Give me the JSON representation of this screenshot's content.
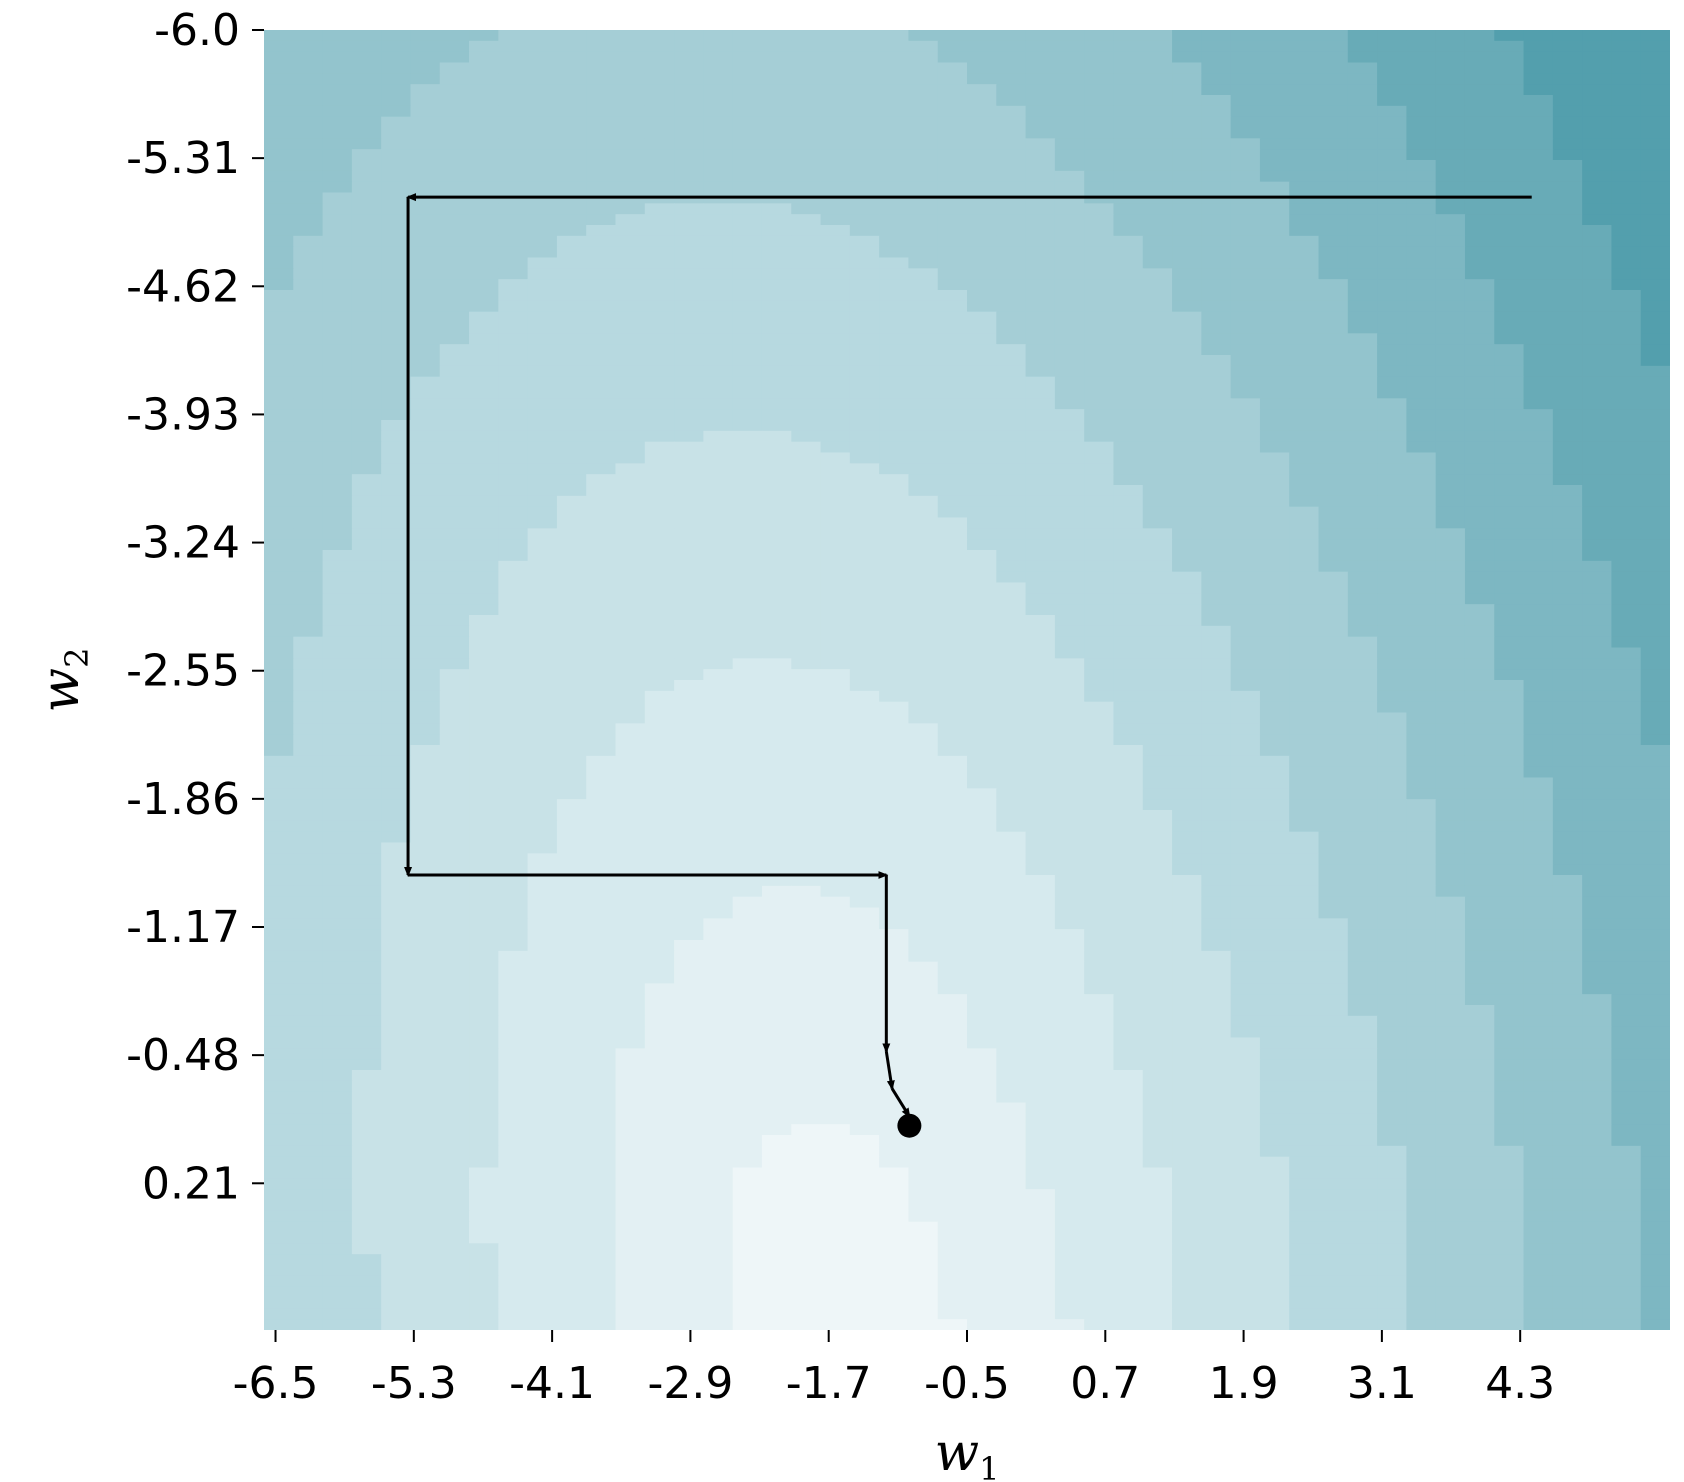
{
  "chart_data": {
    "type": "heatmap",
    "title": "",
    "xlabel": "w",
    "xlabel_sub": "1",
    "ylabel": "w",
    "ylabel_sub": "2",
    "xlim": [
      -6.6,
      5.6
    ],
    "ylim": [
      1.0,
      -6.0
    ],
    "y_inverted": true,
    "x_ticks": [
      "-6.5",
      "-5.3",
      "-4.1",
      "-2.9",
      "-1.7",
      "-0.5",
      "0.7",
      "1.9",
      "3.1",
      "4.3"
    ],
    "y_ticks": [
      "-6.0",
      "-5.31",
      "-4.62",
      "-3.93",
      "-3.24",
      "-2.55",
      "-1.86",
      "-1.17",
      "-0.48",
      "0.21"
    ],
    "surface": {
      "center": [
        -1.6,
        1.1
      ],
      "levels": 9,
      "colormap": [
        "#eef6f8",
        "#e3f0f3",
        "#d6eaee",
        "#c8e2e7",
        "#b7d9e0",
        "#a5ced6",
        "#93c4cd",
        "#7db7c2",
        "#68abb7",
        "#539fad"
      ]
    },
    "path": {
      "points": [
        [
          4.4,
          -5.1
        ],
        [
          -5.35,
          -5.1
        ],
        [
          -5.35,
          -1.45
        ],
        [
          -1.2,
          -1.45
        ],
        [
          -1.2,
          -0.5
        ],
        [
          -1.15,
          -0.3
        ],
        [
          -1.0,
          -0.15
        ]
      ],
      "minimum": [
        -1.0,
        -0.1
      ],
      "line_color": "#000000",
      "point_color": "#000000"
    },
    "grid": false,
    "legend": "none"
  }
}
